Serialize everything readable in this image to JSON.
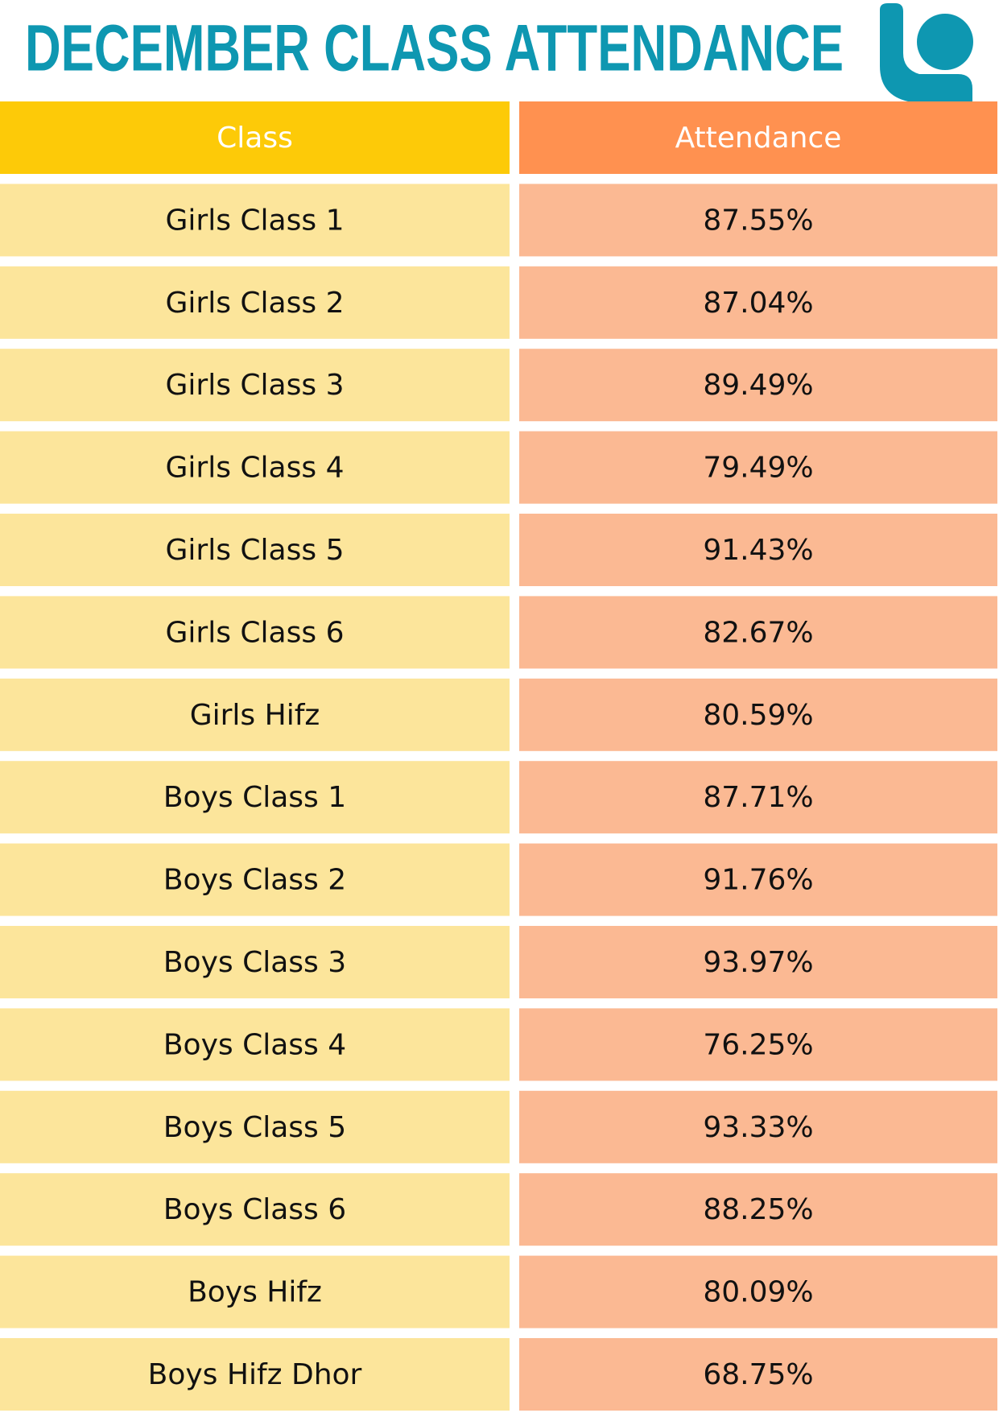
{
  "header": {
    "title": "DECEMBER CLASS ATTENDANCE"
  },
  "table": {
    "columns": [
      "Class",
      "Attendance"
    ],
    "rows": [
      [
        "Girls Class 1",
        "87.55%"
      ],
      [
        "Girls Class 2",
        "87.04%"
      ],
      [
        "Girls Class 3",
        "89.49%"
      ],
      [
        "Girls Class 4",
        "79.49%"
      ],
      [
        "Girls Class 5",
        "91.43%"
      ],
      [
        "Girls Class 6",
        "82.67%"
      ],
      [
        "Girls Hifz",
        "80.59%"
      ],
      [
        "Boys Class 1",
        "87.71%"
      ],
      [
        "Boys Class 2",
        "91.76%"
      ],
      [
        "Boys Class 3",
        "93.97%"
      ],
      [
        "Boys Class 4",
        "76.25%"
      ],
      [
        "Boys Class 5",
        "93.33%"
      ],
      [
        "Boys Class 6",
        "88.25%"
      ],
      [
        "Boys Hifz",
        "80.09%"
      ],
      [
        "Boys Hifz Dhor",
        "68.75%"
      ]
    ]
  }
}
